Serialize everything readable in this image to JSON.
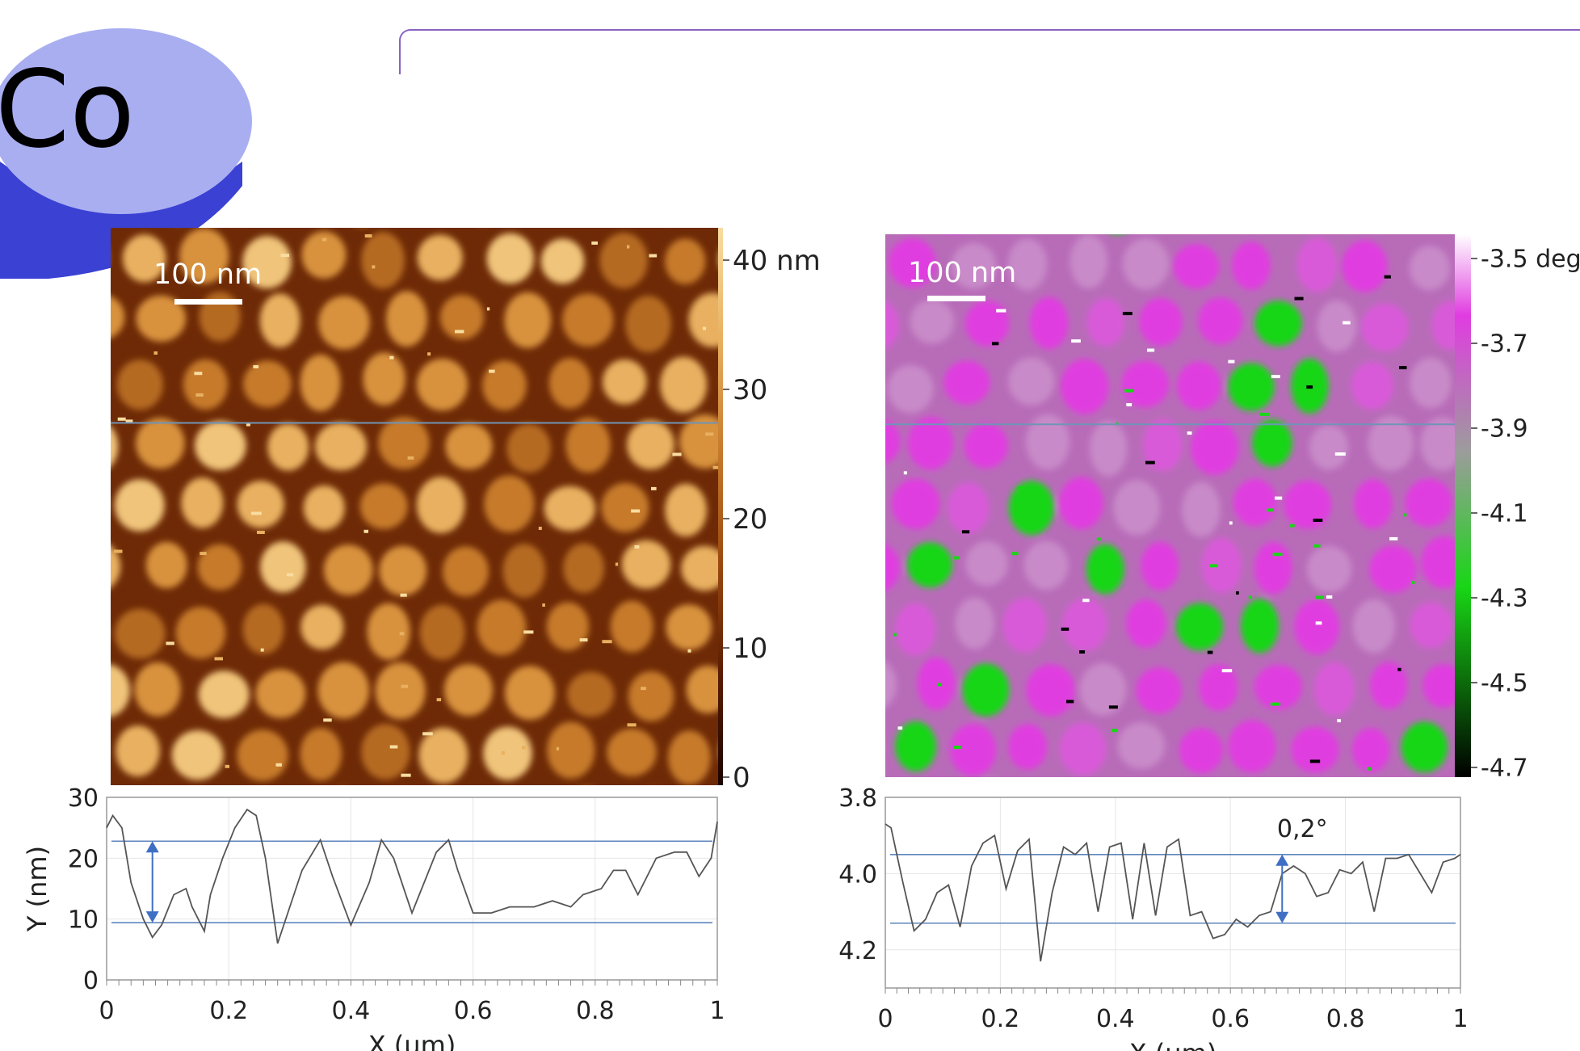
{
  "header": {
    "element_label": "Co"
  },
  "colors": {
    "disk_top": "#a9aef1",
    "disk_side": "#3a41d3",
    "title_line": "#8a63c0",
    "profile_line": "#555555",
    "marker_line": "#5d85bd",
    "marker_arrow": "#3f6fc4",
    "scan_line": "#6f94b6",
    "scale_bar": "#ffffff"
  },
  "topography": {
    "scale_bar_label": "100 nm",
    "colorbar_ticks": [
      "40 nm",
      "30",
      "20",
      "10",
      "0"
    ],
    "colormap": [
      "#1a0400",
      "#5a1c02",
      "#9a4a10",
      "#c67a2c",
      "#e8b060",
      "#f8dca0"
    ]
  },
  "phase": {
    "scale_bar_label": "100 nm",
    "colorbar_ticks": [
      "-3.5 deg",
      "-3.7",
      "-3.9",
      "-4.1",
      "-4.3",
      "-4.5",
      "-4.7"
    ],
    "colormap": [
      "#000000",
      "#19d616",
      "#9c9c9c",
      "#e03ce0",
      "#ffffff"
    ]
  },
  "chart_data": [
    {
      "type": "line",
      "title": "",
      "xlabel": "X (µm)",
      "ylabel": "Y (nm)",
      "xlim": [
        0,
        1
      ],
      "ylim": [
        0,
        30
      ],
      "x_ticks": [
        "0",
        "0.2",
        "0.4",
        "0.6",
        "0.8",
        "1"
      ],
      "y_ticks": [
        "30",
        "20",
        "10",
        "0"
      ],
      "grid": true,
      "reference_lines_y": [
        22.8,
        9.4
      ],
      "series": [
        {
          "x": [
            0,
            0.01,
            0.025,
            0.04,
            0.06,
            0.075,
            0.09,
            0.11,
            0.13,
            0.14,
            0.16,
            0.17,
            0.19,
            0.21,
            0.23,
            0.245,
            0.26,
            0.28,
            0.3,
            0.32,
            0.35,
            0.37,
            0.4,
            0.43,
            0.45,
            0.47,
            0.5,
            0.52,
            0.54,
            0.56,
            0.575,
            0.6,
            0.63,
            0.66,
            0.7,
            0.73,
            0.76,
            0.78,
            0.81,
            0.83,
            0.85,
            0.87,
            0.9,
            0.93,
            0.95,
            0.97,
            0.99,
            1.0
          ],
          "y": [
            25,
            27,
            25,
            16,
            10,
            7,
            9,
            14,
            15,
            12,
            8,
            14,
            20,
            25,
            28,
            27,
            20,
            6,
            12,
            18,
            23,
            17,
            9,
            16,
            23,
            20,
            11,
            16,
            21,
            23,
            18,
            11,
            11,
            12,
            12,
            13,
            12,
            14,
            15,
            18,
            18,
            14,
            20,
            21,
            21,
            17,
            20,
            26
          ]
        }
      ]
    },
    {
      "type": "line",
      "title": "",
      "xlabel": "X (µm)",
      "ylabel": "",
      "xlim": [
        0,
        1
      ],
      "ylim": [
        -4.3,
        -3.8
      ],
      "x_ticks": [
        "0",
        "0.2",
        "0.4",
        "0.6",
        "0.8",
        "1"
      ],
      "y_ticks": [
        "3.8",
        "4.0",
        "4.2"
      ],
      "grid": true,
      "annotation": "0,2°",
      "reference_lines_y": [
        -3.95,
        -4.13
      ],
      "series": [
        {
          "x": [
            0,
            0.01,
            0.03,
            0.05,
            0.07,
            0.09,
            0.11,
            0.13,
            0.15,
            0.17,
            0.19,
            0.21,
            0.23,
            0.25,
            0.27,
            0.29,
            0.31,
            0.33,
            0.35,
            0.37,
            0.39,
            0.41,
            0.43,
            0.45,
            0.47,
            0.49,
            0.51,
            0.53,
            0.55,
            0.57,
            0.59,
            0.61,
            0.63,
            0.65,
            0.67,
            0.69,
            0.71,
            0.73,
            0.75,
            0.77,
            0.79,
            0.81,
            0.83,
            0.85,
            0.87,
            0.89,
            0.91,
            0.93,
            0.95,
            0.97,
            0.99,
            1.0
          ],
          "y": [
            -3.87,
            -3.88,
            -4.02,
            -4.15,
            -4.12,
            -4.05,
            -4.03,
            -4.14,
            -3.98,
            -3.92,
            -3.9,
            -4.04,
            -3.94,
            -3.91,
            -4.23,
            -4.05,
            -3.93,
            -3.95,
            -3.92,
            -4.1,
            -3.93,
            -3.92,
            -4.12,
            -3.92,
            -4.11,
            -3.93,
            -3.91,
            -4.11,
            -4.1,
            -4.17,
            -4.16,
            -4.12,
            -4.14,
            -4.11,
            -4.1,
            -4.0,
            -3.98,
            -4.0,
            -4.06,
            -4.05,
            -3.99,
            -4.0,
            -3.97,
            -4.1,
            -3.96,
            -3.96,
            -3.95,
            -4.0,
            -4.05,
            -3.97,
            -3.96,
            -3.95
          ]
        }
      ]
    }
  ]
}
